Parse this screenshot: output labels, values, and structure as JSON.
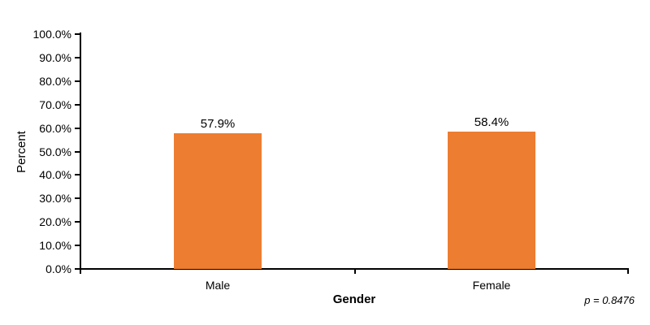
{
  "chart_data": {
    "type": "bar",
    "title": "",
    "categories": [
      "Male",
      "Female"
    ],
    "values": [
      57.9,
      58.4
    ],
    "value_labels": [
      "57.9%",
      "58.4%"
    ],
    "xlabel": "Gender",
    "ylabel": "Percent",
    "ylim": [
      0,
      100
    ],
    "ytick_step": 10,
    "ytick_labels": [
      "0.0%",
      "10.0%",
      "20.0%",
      "30.0%",
      "40.0%",
      "50.0%",
      "60.0%",
      "70.0%",
      "80.0%",
      "90.0%",
      "100.0%"
    ],
    "grid": false,
    "legend": "none",
    "bar_color": "#ED7D31",
    "axis_color": "#000000",
    "text_color": "#000000",
    "annotation": "p = 0.8476"
  }
}
